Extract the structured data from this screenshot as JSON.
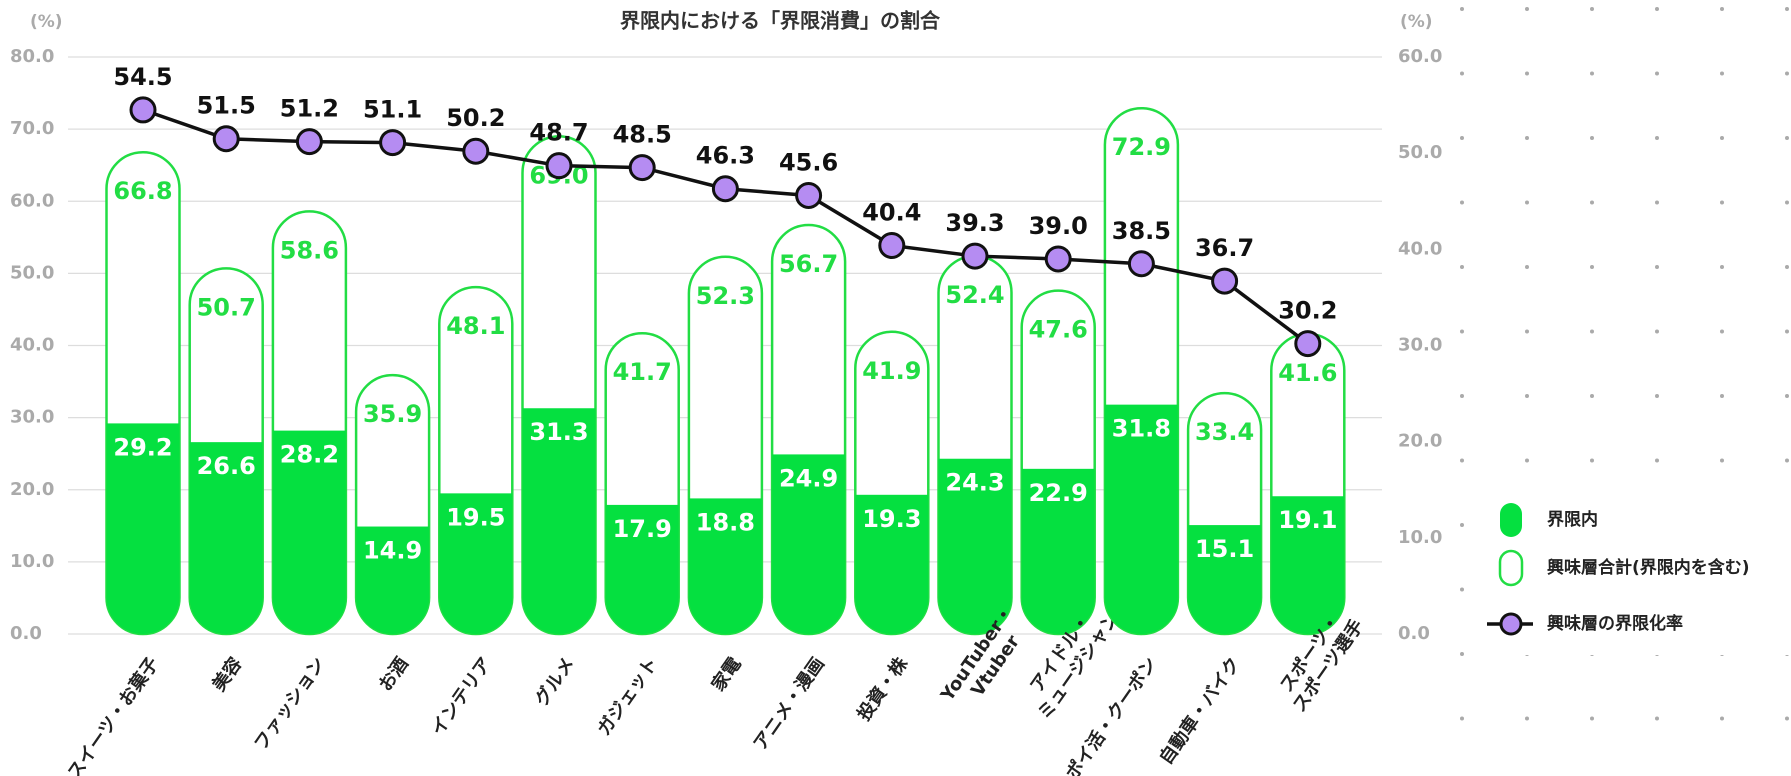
{
  "chart_data": {
    "type": "bar",
    "title": "界限内における「界限消費」の割合",
    "y_unit": "(%)",
    "y2_unit": "(%)",
    "categories": [
      "スイーツ・お菓子",
      "美容",
      "ファッション",
      "お酒",
      "インテリア",
      "グルメ",
      "ガジェット",
      "家電",
      "アニメ・漫画",
      "投資・株",
      [
        "YouTuber・",
        "Vtuber"
      ],
      [
        "アイドル・",
        "ミュージシャン"
      ],
      "ポイ活・クーポン",
      "自動車・バイク",
      [
        "スポーツ・",
        "スポーツ選手"
      ]
    ],
    "series": [
      {
        "name": "界限内",
        "color": "#05e040",
        "values": [
          29.2,
          26.6,
          28.2,
          14.9,
          19.5,
          31.3,
          17.9,
          18.8,
          24.9,
          19.3,
          24.3,
          22.9,
          31.8,
          15.1,
          19.1
        ],
        "value_labels": [
          "29.2",
          "26.6",
          "28.2",
          "14.9",
          "19.5",
          "31.3",
          "17.9",
          "18.8",
          "24.9",
          "19.3",
          "24.3",
          "22.9",
          "31.8",
          "15.1",
          "19.1"
        ]
      },
      {
        "name": "興味層合計(界限内を含む)",
        "color": "#22dd44",
        "values": [
          66.8,
          50.7,
          58.6,
          35.9,
          48.1,
          69.0,
          41.7,
          52.3,
          56.7,
          41.9,
          52.4,
          47.6,
          72.9,
          33.4,
          41.6
        ],
        "value_labels": [
          "66.8",
          "50.7",
          "58.6",
          "35.9",
          "48.1",
          "69.0",
          "41.7",
          "52.3",
          "56.7",
          "41.9",
          "52.4",
          "47.6",
          "72.9",
          "33.4",
          "41.6"
        ]
      },
      {
        "name": "興味層の界限化率",
        "type": "line",
        "axis": "y2",
        "color": "#b58cf2",
        "values": [
          54.5,
          51.5,
          51.2,
          51.1,
          50.2,
          48.7,
          48.5,
          46.3,
          45.6,
          40.4,
          39.3,
          39.0,
          38.5,
          36.7,
          30.2
        ],
        "value_labels": [
          "54.5",
          "51.5",
          "51.2",
          "51.1",
          "50.2",
          "48.7",
          "48.5",
          "46.3",
          "45.6",
          "40.4",
          "39.3",
          "39.0",
          "38.5",
          "36.7",
          "30.2"
        ]
      }
    ],
    "ylim": [
      0,
      80
    ],
    "yticks": [
      {
        "value": 0,
        "label": "0.0"
      },
      {
        "value": 10,
        "label": "10.0"
      },
      {
        "value": 20,
        "label": "20.0"
      },
      {
        "value": 30,
        "label": "30.0"
      },
      {
        "value": 40,
        "label": "40.0"
      },
      {
        "value": 50,
        "label": "50.0"
      },
      {
        "value": 60,
        "label": "60.0"
      },
      {
        "value": 70,
        "label": "70.0"
      },
      {
        "value": 80,
        "label": "80.0"
      }
    ],
    "y2lim": [
      0,
      60
    ],
    "y2ticks": [
      {
        "value": 0,
        "label": "0.0"
      },
      {
        "value": 10,
        "label": "10.0"
      },
      {
        "value": 20,
        "label": "20.0"
      },
      {
        "value": 30,
        "label": "30.0"
      },
      {
        "value": 40,
        "label": "40.0"
      },
      {
        "value": 50,
        "label": "50.0"
      },
      {
        "value": 60,
        "label": "60.0"
      }
    ],
    "grid": true
  }
}
